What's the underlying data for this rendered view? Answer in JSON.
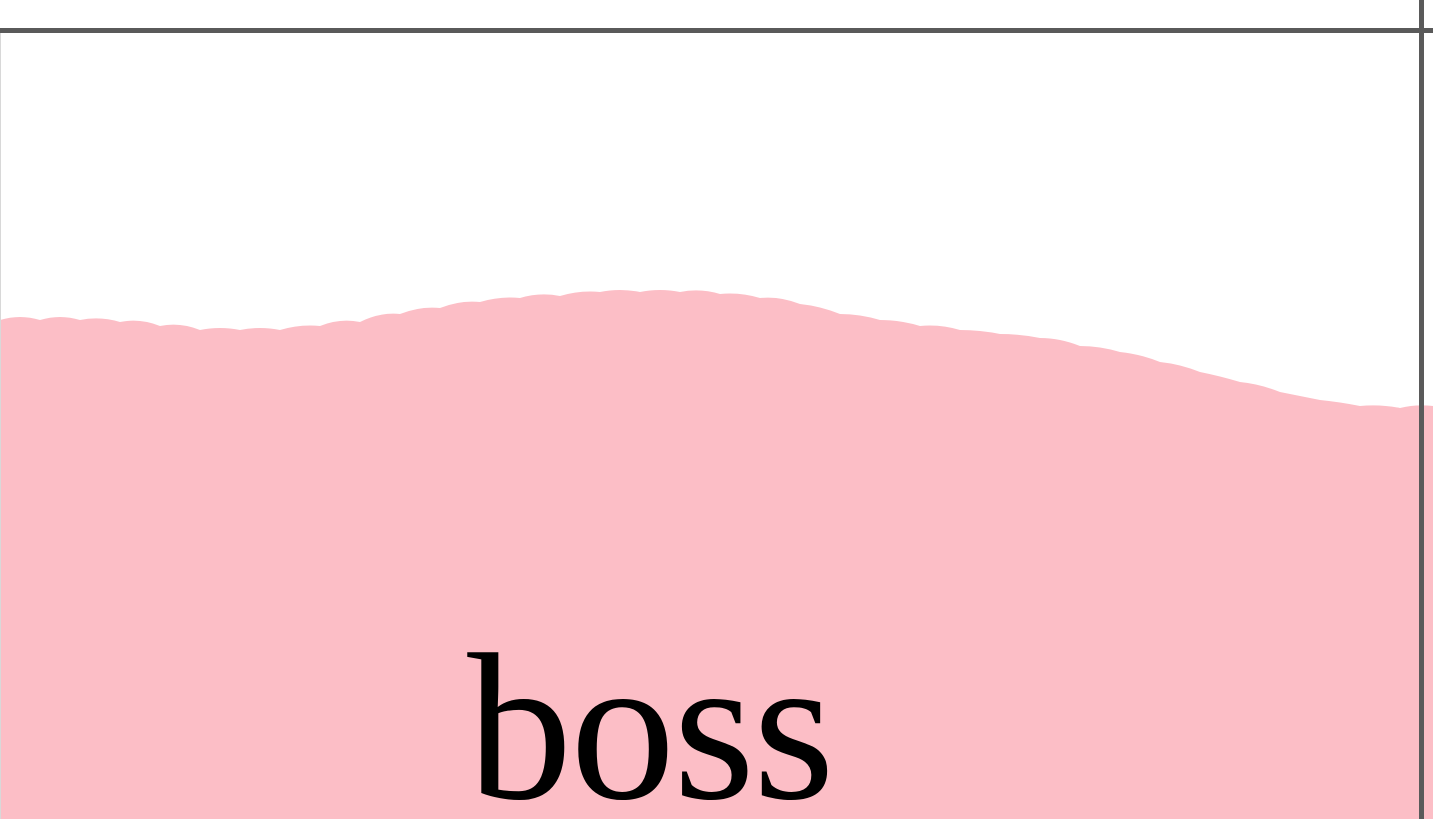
{
  "content": {
    "word": "boss"
  },
  "colors": {
    "background": "#ffffff",
    "border": "#5a5a5a",
    "fill": "#fcbec6",
    "text": "#000000"
  }
}
